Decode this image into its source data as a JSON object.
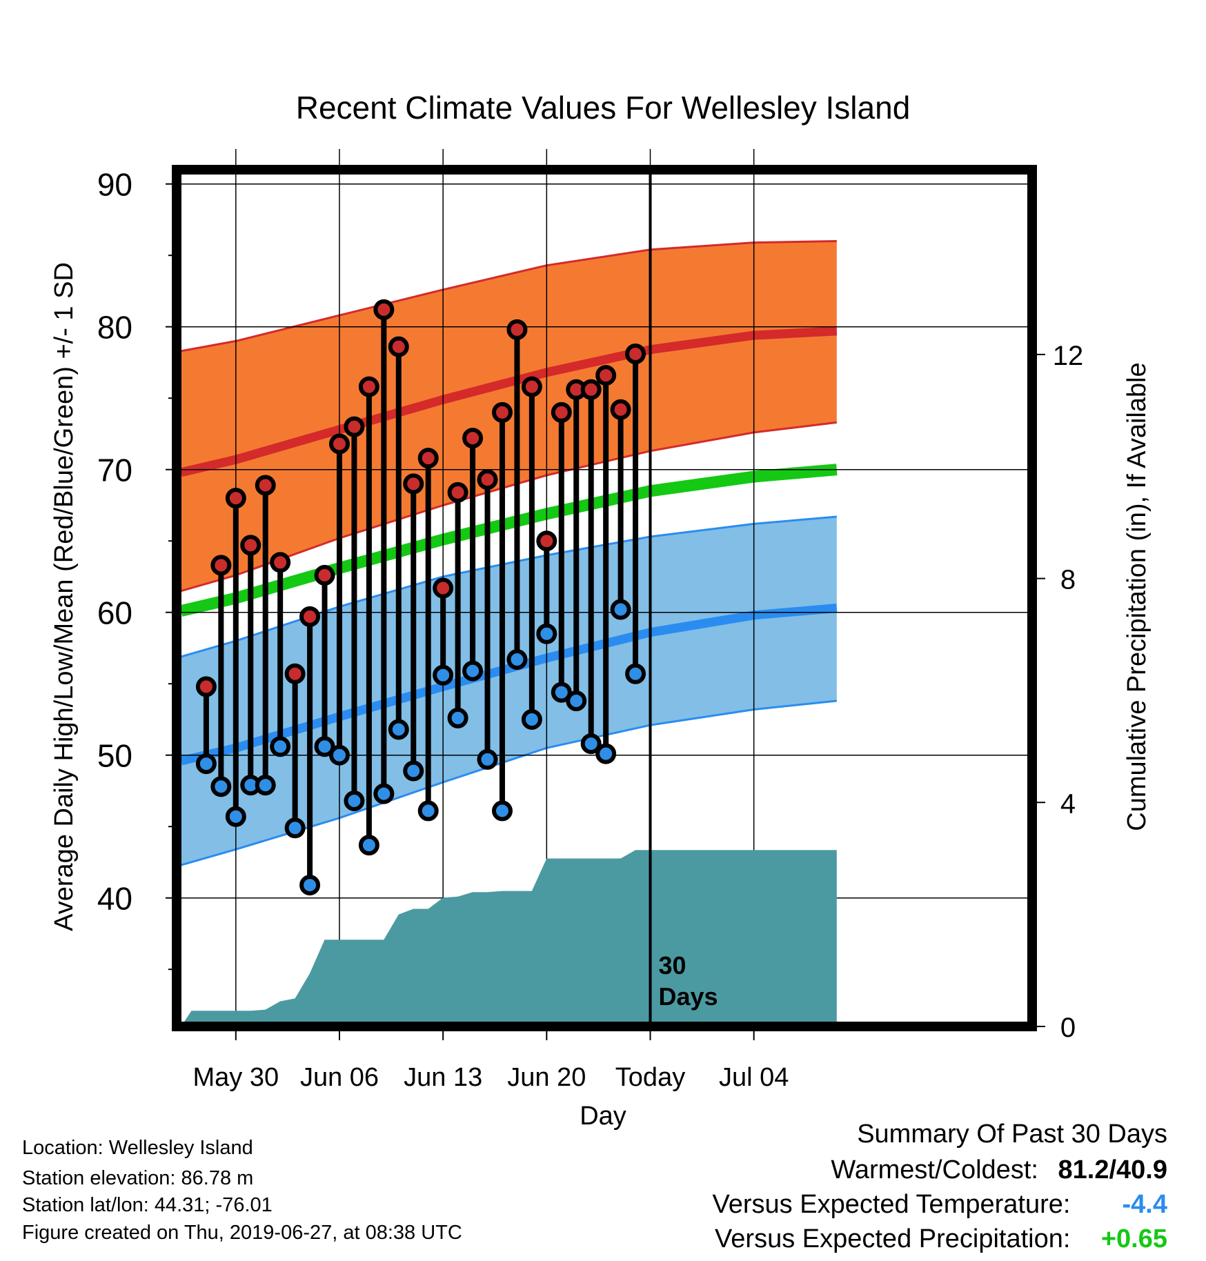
{
  "chart_data": {
    "type": "line",
    "title": "Recent Climate Values For Wellesley Island",
    "xlabel": "Day",
    "ylabel": "Average Daily High/Low/Mean (Red/Blue/Green) +/- 1 SD",
    "y2label": "Cumulative Precipitation (in), If Available",
    "xlim": [
      -4.0,
      53.8
    ],
    "ylim": [
      31,
      91
    ],
    "y2lim": [
      0,
      15.3
    ],
    "x_ticks": [
      {
        "x": 0,
        "label": "May 30"
      },
      {
        "x": 7,
        "label": "Jun 06"
      },
      {
        "x": 14,
        "label": "Jun 13"
      },
      {
        "x": 21,
        "label": "Jun 20"
      },
      {
        "x": 28,
        "label": "Today"
      },
      {
        "x": 35,
        "label": "Jul 04"
      }
    ],
    "y_ticks": [
      40,
      50,
      60,
      70,
      80,
      90
    ],
    "y2_ticks": [
      0,
      4,
      8,
      12
    ],
    "today_marker": {
      "x": 28,
      "label_line1": "30",
      "label_line2": "Days"
    },
    "colors": {
      "high_band": "#f47a32",
      "high_mean": "#d42a2a",
      "low_band": "#82bee6",
      "low_mean": "#2a8cf0",
      "mean": "#14c814",
      "precip": "#4b9aa2",
      "high_dot": "#c92c2c",
      "low_dot": "#2f8fe6"
    },
    "normal_high": {
      "x": [
        -3.7,
        0,
        7,
        14,
        21,
        28,
        35,
        40.6
      ],
      "values": [
        69.8,
        70.7,
        72.8,
        74.9,
        76.8,
        78.4,
        79.4,
        79.7
      ]
    },
    "normal_high_upper": {
      "x": [
        -3.7,
        0,
        7,
        14,
        21,
        28,
        35,
        40.6
      ],
      "values": [
        78.3,
        79.0,
        80.8,
        82.6,
        84.3,
        85.4,
        85.9,
        86.0
      ]
    },
    "normal_high_lower": {
      "x": [
        -3.7,
        0,
        7,
        14,
        21,
        28,
        35,
        40.6
      ],
      "values": [
        61.5,
        62.6,
        65.2,
        67.5,
        69.6,
        71.3,
        72.6,
        73.3
      ]
    },
    "normal_low": {
      "x": [
        -3.7,
        0,
        7,
        14,
        21,
        28,
        35,
        40.6
      ],
      "values": [
        49.6,
        50.5,
        52.7,
        54.8,
        56.8,
        58.6,
        59.8,
        60.3
      ]
    },
    "normal_low_upper": {
      "x": [
        -3.7,
        0,
        7,
        14,
        21,
        28,
        35,
        40.6
      ],
      "values": [
        56.9,
        58.0,
        60.4,
        62.5,
        64.0,
        65.3,
        66.2,
        66.7
      ]
    },
    "normal_low_lower": {
      "x": [
        -3.7,
        0,
        7,
        14,
        21,
        28,
        35,
        40.6
      ],
      "values": [
        42.3,
        43.4,
        45.6,
        48.1,
        50.5,
        52.1,
        53.2,
        53.8
      ]
    },
    "normal_mean": {
      "x": [
        -3.7,
        0,
        7,
        14,
        21,
        28,
        35,
        40.6
      ],
      "values": [
        60.1,
        61.0,
        63.1,
        65.1,
        66.9,
        68.5,
        69.5,
        70.0
      ]
    },
    "precip": {
      "x": [
        -3.7,
        -3,
        -2,
        -1,
        0,
        1,
        2,
        3,
        4,
        5,
        6,
        7,
        8,
        9,
        10,
        11,
        12,
        13,
        14,
        15,
        16,
        17,
        18,
        19,
        20,
        21,
        22,
        23,
        24,
        25,
        26,
        27,
        28,
        29,
        40.6
      ],
      "values": [
        0.0,
        0.28,
        0.28,
        0.28,
        0.28,
        0.28,
        0.3,
        0.45,
        0.5,
        0.95,
        1.55,
        1.55,
        1.55,
        1.55,
        1.55,
        2.0,
        2.1,
        2.1,
        2.3,
        2.32,
        2.4,
        2.4,
        2.42,
        2.42,
        2.42,
        3.0,
        3.0,
        3.0,
        3.0,
        3.0,
        3.0,
        3.15,
        3.15,
        3.15,
        3.15
      ]
    },
    "daily": {
      "x": [
        -2,
        -1,
        0,
        1,
        2,
        3,
        4,
        5,
        6,
        7,
        8,
        9,
        10,
        11,
        12,
        13,
        14,
        15,
        16,
        17,
        18,
        19,
        20,
        21,
        22,
        23,
        24,
        25,
        26,
        27
      ],
      "high": [
        54.8,
        63.3,
        68.0,
        64.7,
        68.9,
        63.5,
        55.7,
        59.7,
        62.6,
        71.8,
        73.0,
        75.8,
        81.2,
        78.6,
        69.0,
        70.8,
        61.7,
        68.4,
        72.2,
        69.3,
        74.0,
        79.8,
        75.8,
        65.0,
        74.0,
        75.6,
        75.6,
        76.6,
        74.2,
        78.1
      ],
      "low": [
        49.4,
        47.8,
        45.7,
        47.9,
        47.9,
        50.6,
        44.9,
        40.9,
        50.6,
        50.0,
        46.8,
        43.7,
        47.3,
        51.8,
        48.9,
        46.1,
        55.6,
        52.6,
        55.9,
        49.7,
        46.1,
        56.7,
        52.5,
        58.5,
        54.4,
        53.8,
        50.8,
        50.1,
        60.2,
        55.7
      ]
    }
  },
  "footer": {
    "location": "Location: Wellesley Island",
    "elevation": "Station elevation: 86.78 m",
    "latlon": "Station lat/lon: 44.31; -76.01",
    "created": "Figure created on Thu, 2019-06-27, at 08:38 UTC"
  },
  "summary": {
    "title": "Summary Of Past 30 Days",
    "warm_cold_label": "Warmest/Coldest:",
    "warm_cold_value": "81.2/40.9",
    "temp_label": "Versus Expected Temperature:",
    "temp_value": "-4.4",
    "temp_color": "#2a8cf0",
    "precip_label": "Versus Expected Precipitation:",
    "precip_value": "+0.65",
    "precip_color": "#14c814"
  }
}
